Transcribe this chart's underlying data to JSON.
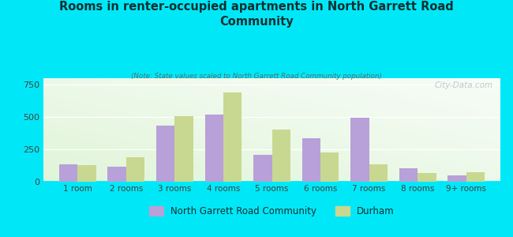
{
  "title": "Rooms in renter-occupied apartments in North Garrett Road\nCommunity",
  "subtitle": "(Note: State values scaled to North Garrett Road Community population)",
  "categories": [
    "1 room",
    "2 rooms",
    "3 rooms",
    "4 rooms",
    "5 rooms",
    "6 rooms",
    "7 rooms",
    "8 rooms",
    "9+ rooms"
  ],
  "community_values": [
    130,
    115,
    430,
    515,
    205,
    335,
    495,
    100,
    45
  ],
  "durham_values": [
    128,
    190,
    505,
    690,
    400,
    225,
    130,
    65,
    70
  ],
  "community_color": "#b8a0d8",
  "durham_color": "#c8d890",
  "background_color": "#00e8f8",
  "ylabel_color": "#404040",
  "title_color": "#103030",
  "subtitle_color": "#507070",
  "yticks": [
    0,
    250,
    500,
    750
  ],
  "ylim": [
    0,
    800
  ],
  "bar_width": 0.38,
  "legend_community": "North Garrett Road Community",
  "legend_durham": "Durham",
  "watermark": "City-Data.com"
}
